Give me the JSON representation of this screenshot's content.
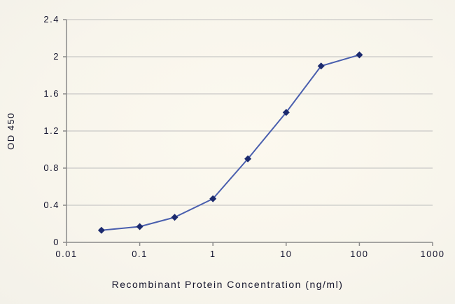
{
  "chart_data": {
    "type": "line",
    "x": [
      0.03,
      0.1,
      0.3,
      1,
      3,
      10,
      30,
      100
    ],
    "y": [
      0.13,
      0.17,
      0.27,
      0.47,
      0.9,
      1.4,
      1.9,
      2.02
    ],
    "xlabel": "Recombinant Protein Concentration (ng/ml)",
    "ylabel": "OD 450",
    "x_scale": "log",
    "xlim": [
      0.01,
      1000
    ],
    "ylim": [
      0,
      2.4
    ],
    "x_ticks": [
      0.01,
      0.1,
      1,
      10,
      100,
      1000
    ],
    "x_tick_labels": [
      "0.01",
      "0.1",
      "1",
      "10",
      "100",
      "1000"
    ],
    "y_ticks": [
      0,
      0.4,
      0.8,
      1.2,
      1.6,
      2,
      2.4
    ],
    "y_tick_labels": [
      "0",
      "0.4",
      "0.8",
      "1.2",
      "1.6",
      "2",
      "2.4"
    ],
    "grid": "horizontal",
    "legend": "none",
    "marker": "diamond",
    "colors": {
      "line": "#4a5fae",
      "marker": "#1c2a6e",
      "gridline": "#bdbdbd",
      "axis": "#8a8a8a",
      "tick_text": "#14142e",
      "background": "#f9f6ed"
    }
  }
}
